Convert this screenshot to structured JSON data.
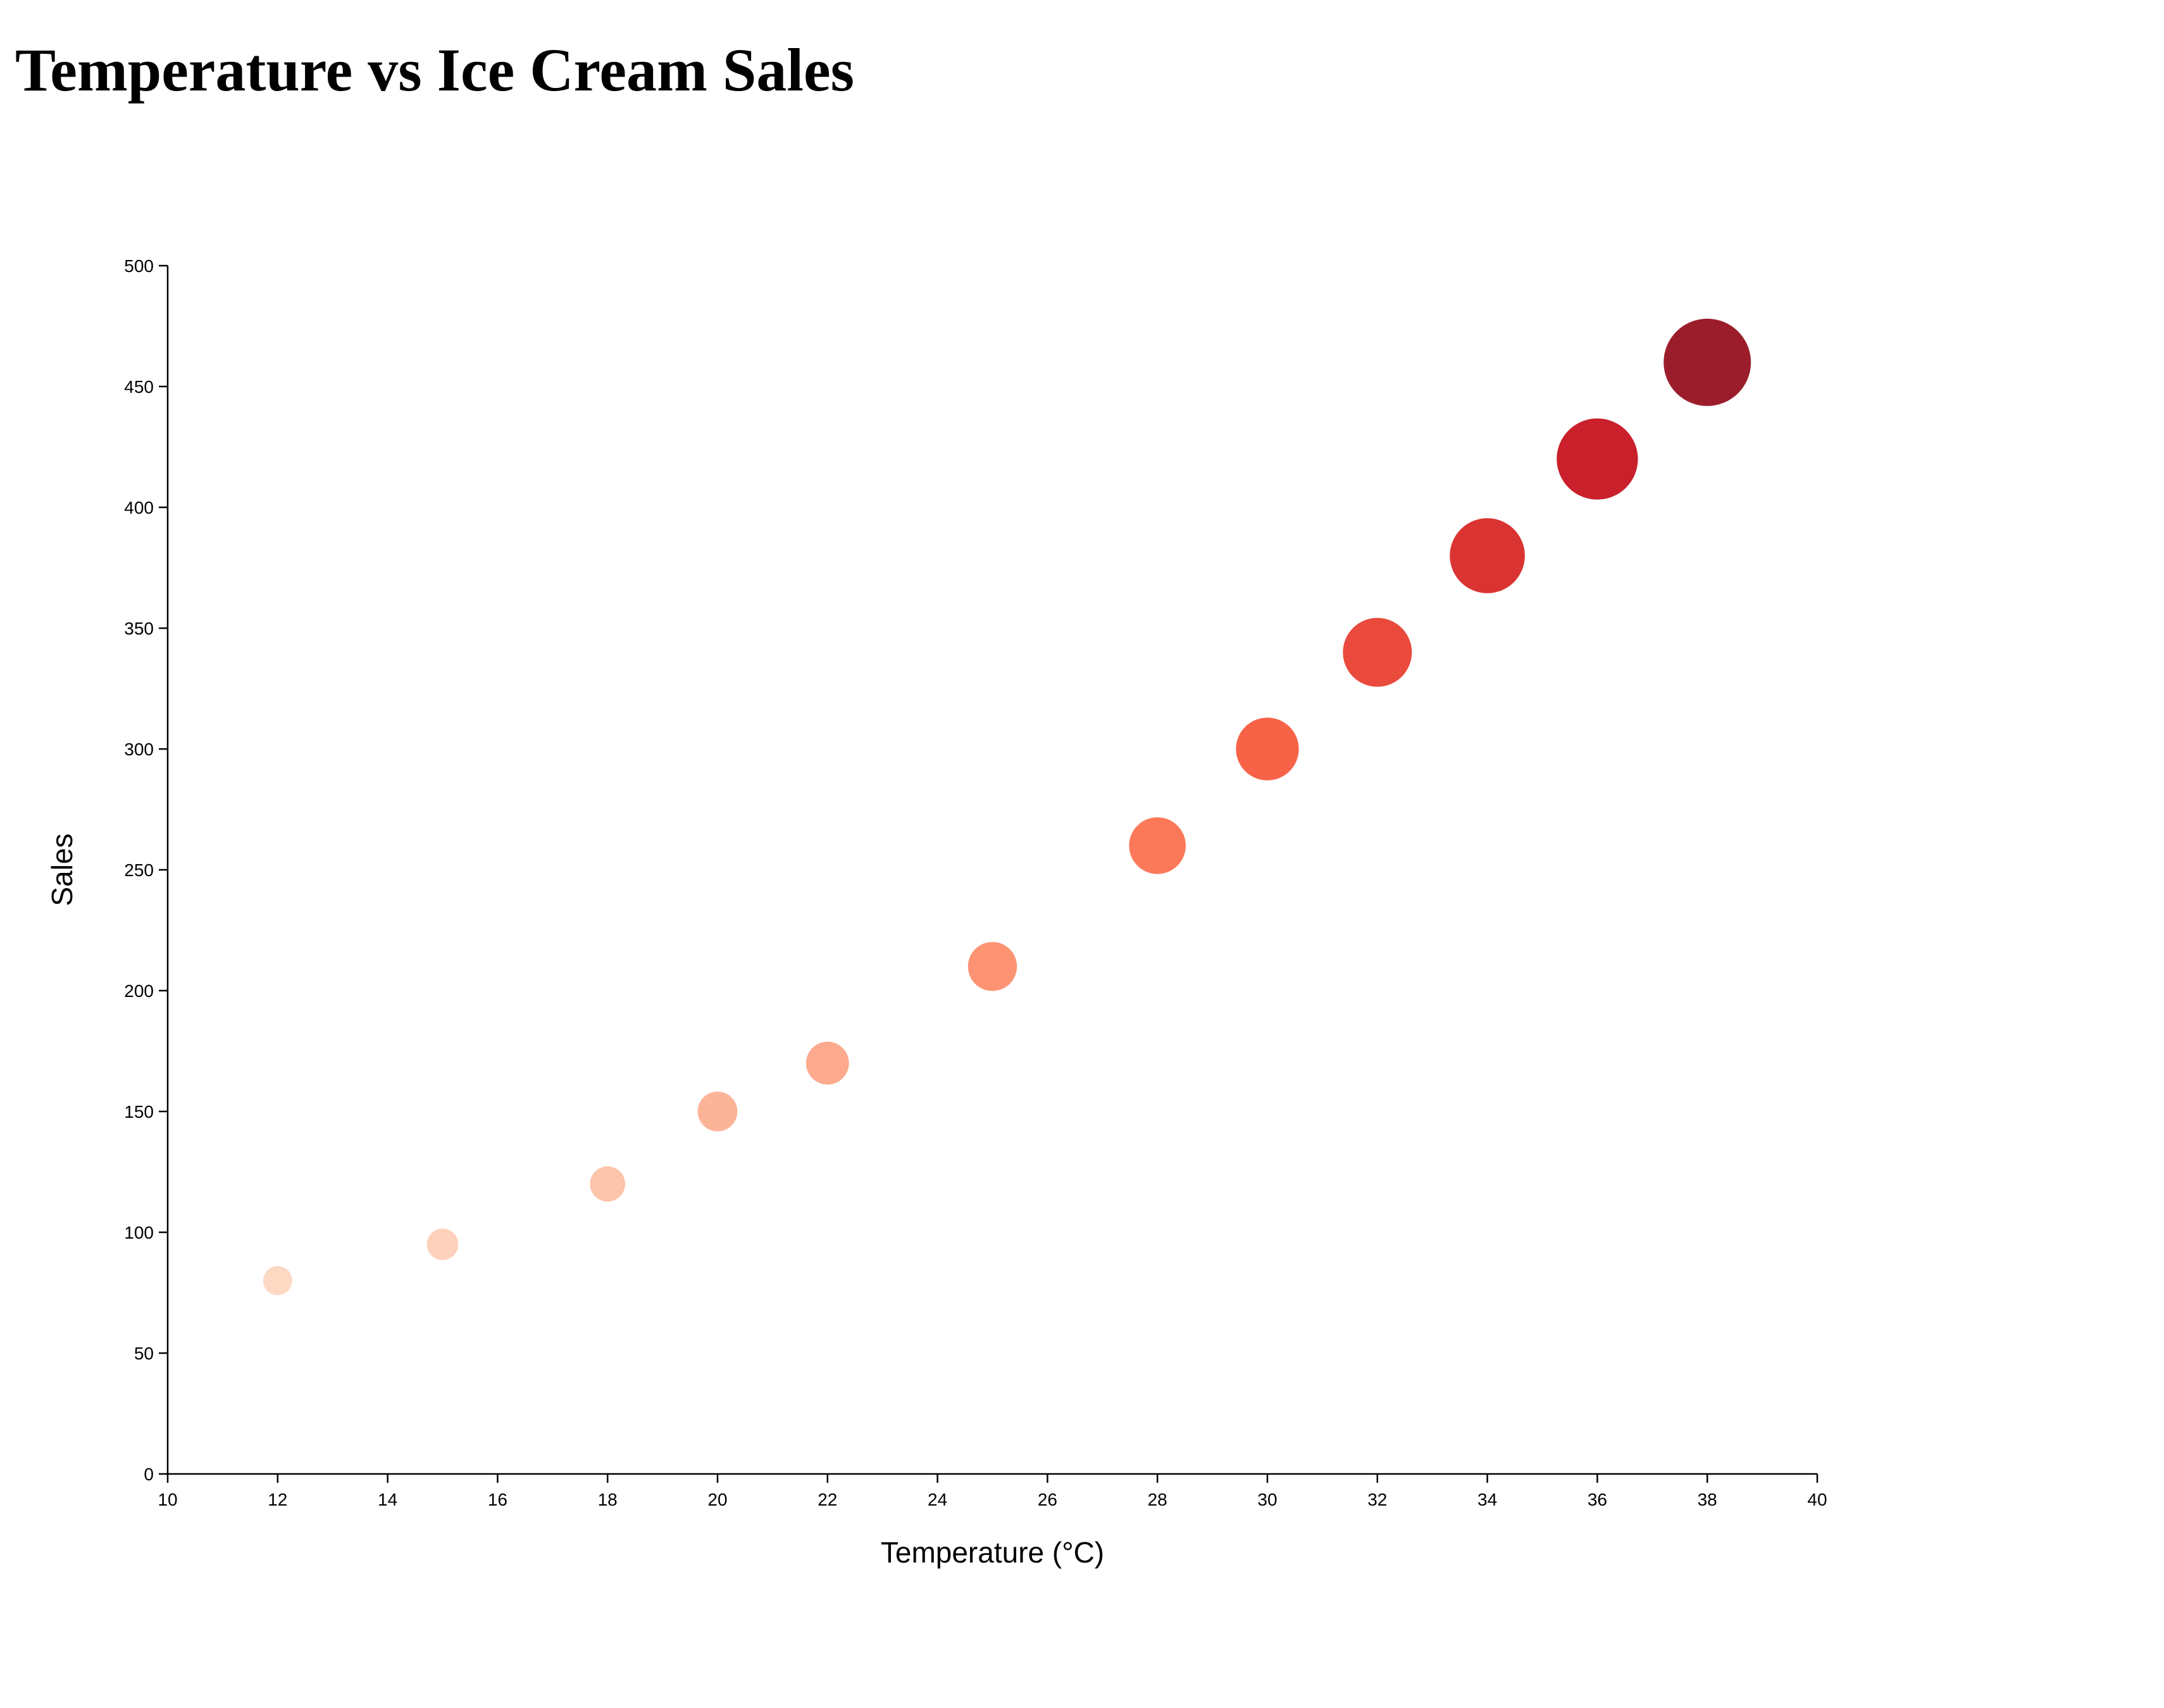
{
  "title": "Temperature vs Ice Cream Sales",
  "chart_data": {
    "type": "scatter",
    "title": "Temperature vs Ice Cream Sales",
    "xlabel": "Temperature (°C)",
    "ylabel": "Sales",
    "xlim": [
      10,
      40
    ],
    "ylim": [
      0,
      500
    ],
    "x_ticks": [
      10,
      12,
      14,
      16,
      18,
      20,
      22,
      24,
      26,
      28,
      30,
      32,
      34,
      36,
      38,
      40
    ],
    "y_ticks": [
      0,
      50,
      100,
      150,
      200,
      250,
      300,
      350,
      400,
      450,
      500
    ],
    "grid": false,
    "legend": "none",
    "encoding": "point size and color intensity increase with sales",
    "color_scale": [
      "#fdd9c4",
      "#67000d"
    ],
    "points": [
      {
        "x": 12,
        "y": 80
      },
      {
        "x": 15,
        "y": 95
      },
      {
        "x": 18,
        "y": 120
      },
      {
        "x": 20,
        "y": 150
      },
      {
        "x": 22,
        "y": 170
      },
      {
        "x": 25,
        "y": 210
      },
      {
        "x": 28,
        "y": 260
      },
      {
        "x": 30,
        "y": 300
      },
      {
        "x": 32,
        "y": 340
      },
      {
        "x": 34,
        "y": 380
      },
      {
        "x": 36,
        "y": 420
      },
      {
        "x": 38,
        "y": 460
      }
    ]
  }
}
